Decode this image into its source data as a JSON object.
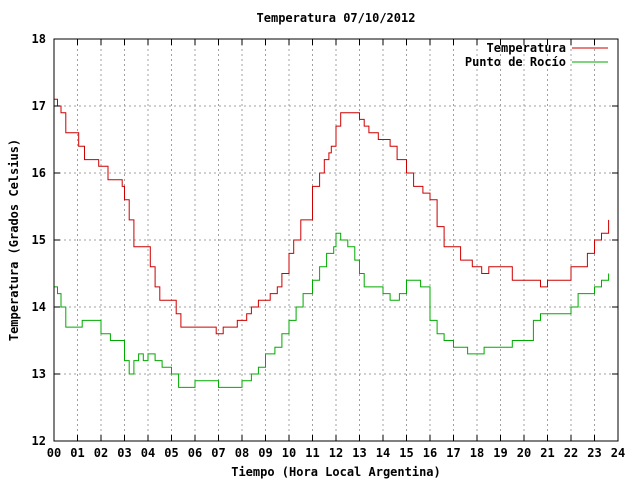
{
  "chart_data": {
    "type": "line",
    "title": "Temperatura 07/10/2012",
    "xlabel": "Tiempo (Hora Local Argentina)",
    "ylabel": "Temperatura (Grados Celsius)",
    "xlim": [
      0,
      24
    ],
    "ylim": [
      12,
      18
    ],
    "x_ticks": [
      "00",
      "01",
      "02",
      "03",
      "04",
      "05",
      "06",
      "07",
      "08",
      "09",
      "10",
      "11",
      "12",
      "13",
      "14",
      "15",
      "16",
      "17",
      "18",
      "19",
      "20",
      "21",
      "22",
      "23",
      "24"
    ],
    "y_ticks": [
      "12",
      "13",
      "14",
      "15",
      "16",
      "17",
      "18"
    ],
    "grid": true,
    "legend_position": "top-right",
    "series": [
      {
        "name": "Temperatura",
        "color": "#cc0000",
        "x": [
          0,
          0.15,
          0.3,
          0.5,
          0.9,
          1.05,
          1.3,
          1.9,
          2.3,
          2.6,
          2.9,
          3.0,
          3.2,
          3.4,
          3.9,
          4.1,
          4.3,
          4.5,
          5.0,
          5.2,
          5.4,
          6.0,
          6.6,
          6.9,
          7.2,
          7.5,
          7.8,
          8.2,
          8.4,
          8.7,
          9.0,
          9.2,
          9.5,
          9.7,
          10.0,
          10.2,
          10.5,
          10.7,
          11.0,
          11.3,
          11.5,
          11.7,
          11.8,
          12.0,
          12.2,
          12.5,
          12.8,
          13.0,
          13.2,
          13.4,
          13.8,
          14.0,
          14.3,
          14.6,
          15.0,
          15.3,
          15.7,
          16.0,
          16.3,
          16.6,
          17.0,
          17.3,
          17.8,
          18.2,
          18.5,
          19.0,
          19.5,
          20.0,
          20.3,
          20.7,
          21.0,
          21.5,
          22.0,
          22.3,
          22.7,
          23.0,
          23.3,
          23.6
        ],
        "values": [
          17.1,
          17.0,
          16.9,
          16.6,
          16.6,
          16.4,
          16.2,
          16.1,
          15.9,
          15.9,
          15.8,
          15.6,
          15.3,
          14.9,
          14.9,
          14.6,
          14.3,
          14.1,
          14.1,
          13.9,
          13.7,
          13.7,
          13.7,
          13.6,
          13.7,
          13.7,
          13.8,
          13.9,
          14.0,
          14.1,
          14.1,
          14.2,
          14.3,
          14.5,
          14.8,
          15.0,
          15.3,
          15.3,
          15.8,
          16.0,
          16.2,
          16.3,
          16.4,
          16.7,
          16.9,
          16.9,
          16.9,
          16.8,
          16.7,
          16.6,
          16.5,
          16.5,
          16.4,
          16.2,
          16.0,
          15.8,
          15.7,
          15.6,
          15.2,
          14.9,
          14.9,
          14.7,
          14.6,
          14.5,
          14.6,
          14.6,
          14.4,
          14.4,
          14.4,
          14.3,
          14.4,
          14.4,
          14.6,
          14.6,
          14.8,
          15.0,
          15.1,
          15.3
        ]
      },
      {
        "name": "Punto de Rocío",
        "color": "#00aa00",
        "x": [
          0,
          0.15,
          0.3,
          0.5,
          1.0,
          1.2,
          1.5,
          2.0,
          2.4,
          2.8,
          3.0,
          3.2,
          3.4,
          3.6,
          3.8,
          4.0,
          4.3,
          4.6,
          5.0,
          5.3,
          5.6,
          6.0,
          6.5,
          7.0,
          7.3,
          7.7,
          8.0,
          8.4,
          8.7,
          9.0,
          9.4,
          9.7,
          10.0,
          10.3,
          10.6,
          11.0,
          11.3,
          11.6,
          11.9,
          12.0,
          12.2,
          12.5,
          12.8,
          13.0,
          13.2,
          13.5,
          13.8,
          14.0,
          14.3,
          14.7,
          15.0,
          15.3,
          15.6,
          16.0,
          16.3,
          16.6,
          17.0,
          17.3,
          17.6,
          18.0,
          18.3,
          18.7,
          19.0,
          19.5,
          20.0,
          20.4,
          20.7,
          21.0,
          21.5,
          22.0,
          22.3,
          22.7,
          23.0,
          23.3,
          23.6
        ],
        "values": [
          14.3,
          14.2,
          14.0,
          13.7,
          13.7,
          13.8,
          13.8,
          13.6,
          13.5,
          13.5,
          13.2,
          13.0,
          13.2,
          13.3,
          13.2,
          13.3,
          13.2,
          13.1,
          13.0,
          12.8,
          12.8,
          12.9,
          12.9,
          12.8,
          12.8,
          12.8,
          12.9,
          13.0,
          13.1,
          13.3,
          13.4,
          13.6,
          13.8,
          14.0,
          14.2,
          14.4,
          14.6,
          14.8,
          14.9,
          15.1,
          15.0,
          14.9,
          14.7,
          14.5,
          14.3,
          14.3,
          14.3,
          14.2,
          14.1,
          14.2,
          14.4,
          14.4,
          14.3,
          13.8,
          13.6,
          13.5,
          13.4,
          13.4,
          13.3,
          13.3,
          13.4,
          13.4,
          13.4,
          13.5,
          13.5,
          13.8,
          13.9,
          13.9,
          13.9,
          14.0,
          14.2,
          14.2,
          14.3,
          14.4,
          14.5
        ]
      }
    ]
  }
}
